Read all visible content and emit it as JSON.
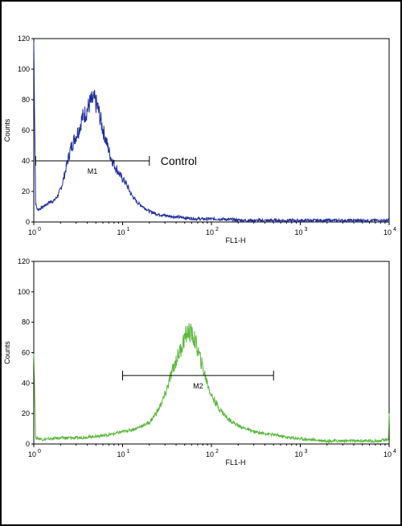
{
  "chart_data": [
    {
      "type": "line",
      "xscale": "log",
      "xlim": [
        1,
        10000
      ],
      "ylim": [
        0,
        120
      ],
      "xlabel": "FL1-H",
      "ylabel": "Counts",
      "xtick_labels": [
        "10",
        "10",
        "10",
        "10",
        "10"
      ],
      "xtick_exponents": [
        "0",
        "1",
        "2",
        "3",
        "4"
      ],
      "ytick_labels": [
        "0",
        "20",
        "40",
        "60",
        "80",
        "100",
        "120"
      ],
      "color": "#1f2e9c",
      "series": [
        {
          "x": [
            1.0,
            1.05,
            1.1,
            1.2,
            1.35,
            1.5,
            1.7,
            1.9,
            2.1,
            2.3,
            2.6,
            2.9,
            3.2,
            3.5,
            3.9,
            4.3,
            4.8,
            5.3,
            5.9,
            6.6,
            7.4,
            8.3,
            9.5,
            11,
            12.5,
            14.5,
            17,
            20,
            25,
            32,
            45,
            70,
            120,
            250,
            600,
            1500,
            4000,
            10000
          ],
          "y": [
            118,
            12,
            8,
            9,
            11,
            13,
            14,
            18,
            25,
            35,
            48,
            55,
            60,
            68,
            72,
            78,
            80,
            74,
            62,
            52,
            42,
            36,
            30,
            25,
            18,
            13,
            10,
            7,
            5,
            4,
            3,
            2,
            2,
            1,
            1,
            1,
            1,
            1
          ]
        }
      ],
      "gate": {
        "label": "M1",
        "x1": 1.05,
        "x2": 20,
        "y": 40
      },
      "annotation": "Control"
    },
    {
      "type": "line",
      "xscale": "log",
      "xlim": [
        1,
        10000
      ],
      "ylim": [
        0,
        120
      ],
      "xlabel": "FL1-H",
      "ylabel": "Counts",
      "xtick_labels": [
        "10",
        "10",
        "10",
        "10",
        "10"
      ],
      "xtick_exponents": [
        "0",
        "1",
        "2",
        "3",
        "4"
      ],
      "ytick_labels": [
        "0",
        "20",
        "40",
        "60",
        "80",
        "100",
        "120"
      ],
      "color": "#5cb83c",
      "series": [
        {
          "x": [
            1.0,
            1.05,
            1.3,
            2,
            3,
            5,
            7,
            10,
            14,
            20,
            25,
            30,
            35,
            40,
            45,
            50,
            55,
            60,
            65,
            70,
            80,
            90,
            100,
            120,
            150,
            200,
            300,
            500,
            800,
            1200,
            2000,
            4000,
            8000,
            9800,
            10000
          ],
          "y": [
            65,
            4,
            3,
            4,
            4,
            5,
            6,
            8,
            10,
            14,
            22,
            32,
            45,
            55,
            62,
            70,
            74,
            72,
            68,
            62,
            50,
            40,
            32,
            24,
            17,
            12,
            8,
            6,
            4,
            3,
            2,
            2,
            2,
            3,
            20
          ]
        }
      ],
      "gate": {
        "label": "M2",
        "x1": 10,
        "x2": 500,
        "y": 45
      },
      "annotation": ""
    }
  ]
}
